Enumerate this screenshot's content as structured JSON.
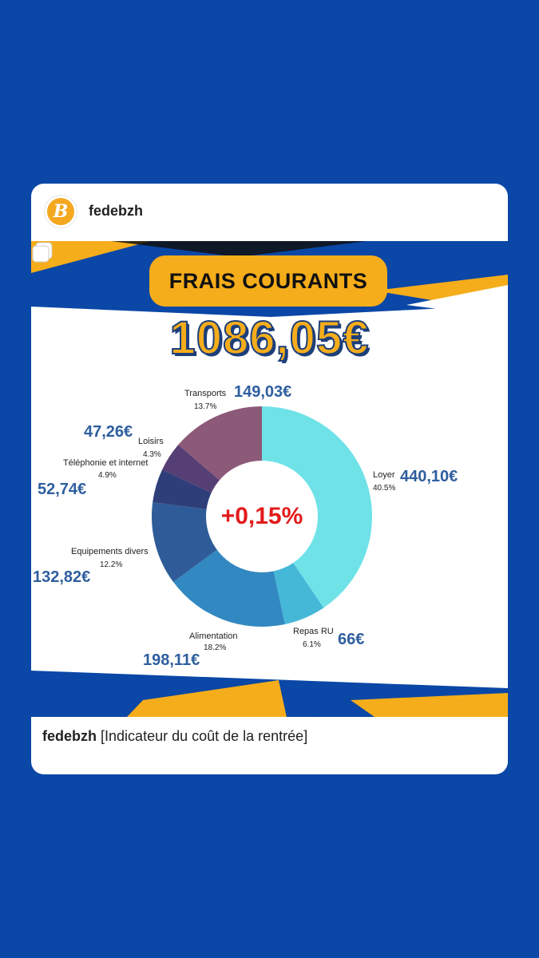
{
  "post": {
    "username": "fedebzh",
    "avatar_letter": "B",
    "caption_user": "fedebzh",
    "caption_text": "[Indicateur du coût de la rentrée]"
  },
  "graphic": {
    "title": "FRAIS COURANTS",
    "total": "1086,05€",
    "center_value": "+0,15%",
    "colors": {
      "accent": "#f6ad1b",
      "blue": "#0a47a6",
      "red": "#e21b1b"
    }
  },
  "chart_data": {
    "type": "pie",
    "donut": true,
    "slices": [
      {
        "label": "Loyer",
        "amount": "440,10€",
        "percent": "40.5%",
        "value": 40.5,
        "color": "#6fe2e8"
      },
      {
        "label": "Repas RU",
        "amount": "66€",
        "percent": "6.1%",
        "value": 6.1,
        "color": "#45b8d8"
      },
      {
        "label": "Alimentation",
        "amount": "198,11€",
        "percent": "18.2%",
        "value": 18.2,
        "color": "#3288c0"
      },
      {
        "label": "Equipements divers",
        "amount": "132,82€",
        "percent": "12.2%",
        "value": 12.2,
        "color": "#2f5c98"
      },
      {
        "label": "Téléphonie et internet",
        "amount": "52,74€",
        "percent": "4.9%",
        "value": 4.9,
        "color": "#2e3e78"
      },
      {
        "label": "Loisirs",
        "amount": "47,26€",
        "percent": "4.3%",
        "value": 4.3,
        "color": "#553f74"
      },
      {
        "label": "Transports",
        "amount": "149,03€",
        "percent": "13.7%",
        "value": 13.7,
        "color": "#8c5978"
      }
    ]
  }
}
